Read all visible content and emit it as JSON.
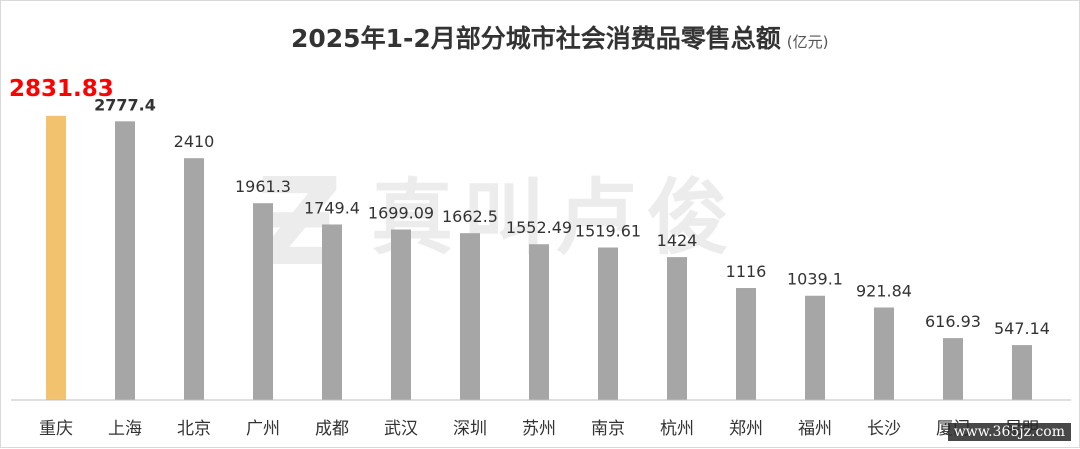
{
  "chart_data": {
    "type": "bar",
    "title": "2025年1-2月部分城市社会消费品零售总额",
    "unit": "(亿元)",
    "categories": [
      "重庆",
      "上海",
      "北京",
      "广州",
      "成都",
      "武汉",
      "深圳",
      "苏州",
      "南京",
      "杭州",
      "郑州",
      "福州",
      "长沙",
      "厦门",
      "昆明"
    ],
    "values": [
      2831.83,
      2777.4,
      2410,
      1961.3,
      1749.4,
      1699.09,
      1662.5,
      1552.49,
      1519.61,
      1424,
      1116,
      1039.1,
      921.84,
      616.93,
      547.14
    ],
    "value_labels": [
      "2831.83",
      "2777.4",
      "2410",
      "1961.3",
      "1749.4",
      "1699.09",
      "1662.5",
      "1552.49",
      "1519.61",
      "1424",
      "1116",
      "1039.1",
      "921.84",
      "616.93",
      "547.14"
    ],
    "xlabel": "",
    "ylabel": "",
    "ylim": [
      0,
      2950
    ],
    "grid": false,
    "legend": "none",
    "highlight_index": 0,
    "colors": {
      "highlight_bar": "#f3c26e",
      "bar": "#a6a6a6",
      "highlight_label": "#ff0000",
      "label": "#333333",
      "axis": "#bfbfbf"
    }
  },
  "watermark": "真叫卢俊",
  "credit": "www.365jz.com"
}
